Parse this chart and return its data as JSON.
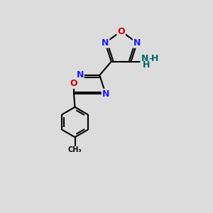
{
  "bg_color": "#dcdcdc",
  "atom_colors": {
    "C": "#000000",
    "N": "#1a1aff",
    "O": "#cc0000",
    "NH": "#006666"
  },
  "bond_color": "#000000",
  "bond_width": 1.5,
  "font_size_atom": 9,
  "figsize": [
    3.0,
    3.0
  ],
  "dpi": 100,
  "xlim": [
    0,
    10
  ],
  "ylim": [
    0,
    10
  ]
}
